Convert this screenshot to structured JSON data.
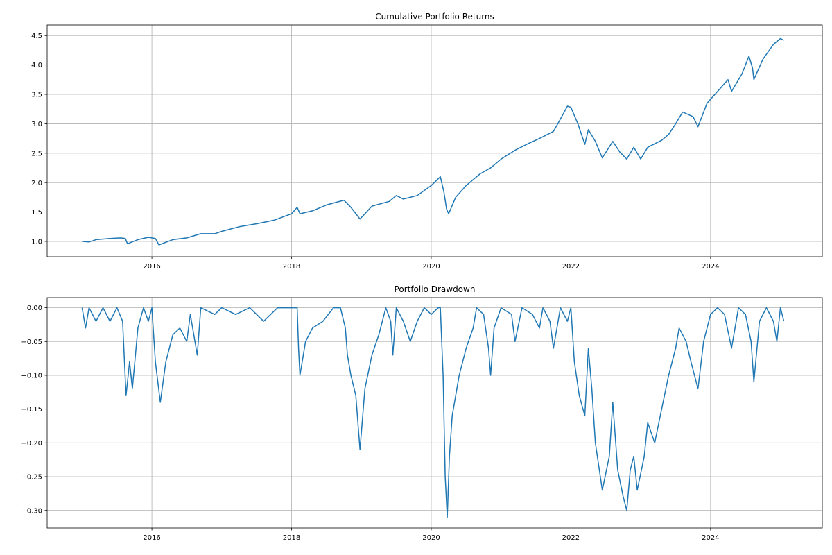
{
  "chart_data": [
    {
      "type": "line",
      "title": "Cumulative Portfolio Returns",
      "xlabel": "",
      "ylabel": "",
      "xlim": [
        2014.5,
        2025.6
      ],
      "ylim": [
        0.74,
        4.68
      ],
      "grid": true,
      "color": "#1f77b4",
      "xticks": [
        2016,
        2018,
        2020,
        2022,
        2024
      ],
      "xtick_labels": [
        "2016",
        "2018",
        "2020",
        "2022",
        "2024"
      ],
      "yticks": [
        1.0,
        1.5,
        2.0,
        2.5,
        3.0,
        3.5,
        4.0,
        4.5
      ],
      "ytick_labels": [
        "1.0",
        "1.5",
        "2.0",
        "2.5",
        "3.0",
        "3.5",
        "4.0",
        "4.5"
      ],
      "x": [
        2015.0,
        2015.1,
        2015.2,
        2015.4,
        2015.55,
        2015.62,
        2015.65,
        2015.8,
        2015.95,
        2016.05,
        2016.1,
        2016.3,
        2016.5,
        2016.7,
        2016.9,
        2017.0,
        2017.25,
        2017.5,
        2017.75,
        2018.0,
        2018.08,
        2018.12,
        2018.3,
        2018.5,
        2018.75,
        2018.85,
        2018.98,
        2019.15,
        2019.4,
        2019.5,
        2019.6,
        2019.8,
        2020.0,
        2020.13,
        2020.18,
        2020.22,
        2020.25,
        2020.35,
        2020.5,
        2020.7,
        2020.85,
        2021.0,
        2021.2,
        2021.4,
        2021.55,
        2021.75,
        2021.85,
        2021.95,
        2022.0,
        2022.1,
        2022.2,
        2022.25,
        2022.35,
        2022.45,
        2022.6,
        2022.7,
        2022.8,
        2022.9,
        2023.0,
        2023.1,
        2023.3,
        2023.4,
        2023.5,
        2023.6,
        2023.75,
        2023.82,
        2023.95,
        2024.1,
        2024.25,
        2024.3,
        2024.45,
        2024.55,
        2024.6,
        2024.62,
        2024.75,
        2024.9,
        2025.0,
        2025.05
      ],
      "y": [
        1.0,
        0.99,
        1.03,
        1.05,
        1.06,
        1.05,
        0.96,
        1.03,
        1.07,
        1.05,
        0.94,
        1.03,
        1.06,
        1.13,
        1.13,
        1.17,
        1.25,
        1.3,
        1.36,
        1.47,
        1.58,
        1.47,
        1.52,
        1.62,
        1.7,
        1.58,
        1.38,
        1.6,
        1.68,
        1.78,
        1.72,
        1.78,
        1.95,
        2.1,
        1.85,
        1.55,
        1.47,
        1.75,
        1.95,
        2.15,
        2.25,
        2.4,
        2.55,
        2.67,
        2.75,
        2.87,
        3.08,
        3.3,
        3.28,
        3.0,
        2.65,
        2.9,
        2.7,
        2.42,
        2.7,
        2.52,
        2.4,
        2.6,
        2.4,
        2.6,
        2.72,
        2.82,
        3.0,
        3.2,
        3.12,
        2.95,
        3.35,
        3.55,
        3.75,
        3.55,
        3.85,
        4.15,
        3.95,
        3.75,
        4.1,
        4.35,
        4.45,
        4.42
      ]
    },
    {
      "type": "line",
      "title": "Portfolio Drawdown",
      "xlabel": "",
      "ylabel": "",
      "xlim": [
        2014.5,
        2025.6
      ],
      "ylim": [
        -0.326,
        0.015
      ],
      "grid": true,
      "color": "#1f77b4",
      "xticks": [
        2016,
        2018,
        2020,
        2022,
        2024
      ],
      "xtick_labels": [
        "2016",
        "2018",
        "2020",
        "2022",
        "2024"
      ],
      "yticks": [
        0.0,
        -0.05,
        -0.1,
        -0.15,
        -0.2,
        -0.25,
        -0.3
      ],
      "ytick_labels": [
        "0.00",
        "−0.05",
        "−0.10",
        "−0.15",
        "−0.20",
        "−0.25",
        "−0.30"
      ],
      "x": [
        2015.0,
        2015.05,
        2015.1,
        2015.2,
        2015.3,
        2015.4,
        2015.5,
        2015.58,
        2015.63,
        2015.68,
        2015.72,
        2015.8,
        2015.88,
        2015.95,
        2016.0,
        2016.05,
        2016.12,
        2016.2,
        2016.3,
        2016.4,
        2016.5,
        2016.55,
        2016.65,
        2016.7,
        2016.9,
        2017.0,
        2017.2,
        2017.4,
        2017.6,
        2017.8,
        2018.0,
        2018.08,
        2018.1,
        2018.12,
        2018.2,
        2018.3,
        2018.45,
        2018.6,
        2018.7,
        2018.77,
        2018.8,
        2018.85,
        2018.92,
        2018.98,
        2019.05,
        2019.15,
        2019.25,
        2019.35,
        2019.42,
        2019.45,
        2019.5,
        2019.6,
        2019.7,
        2019.8,
        2019.9,
        2020.0,
        2020.1,
        2020.13,
        2020.17,
        2020.2,
        2020.23,
        2020.26,
        2020.3,
        2020.4,
        2020.5,
        2020.6,
        2020.65,
        2020.75,
        2020.82,
        2020.85,
        2020.9,
        2021.0,
        2021.15,
        2021.2,
        2021.3,
        2021.45,
        2021.55,
        2021.6,
        2021.7,
        2021.75,
        2021.85,
        2021.95,
        2022.0,
        2022.05,
        2022.12,
        2022.2,
        2022.25,
        2022.3,
        2022.35,
        2022.45,
        2022.55,
        2022.6,
        2022.67,
        2022.75,
        2022.8,
        2022.85,
        2022.9,
        2022.95,
        2023.05,
        2023.1,
        2023.2,
        2023.3,
        2023.4,
        2023.5,
        2023.55,
        2023.65,
        2023.72,
        2023.82,
        2023.9,
        2024.0,
        2024.1,
        2024.2,
        2024.3,
        2024.4,
        2024.5,
        2024.58,
        2024.62,
        2024.7,
        2024.8,
        2024.9,
        2024.95,
        2025.0,
        2025.05
      ],
      "y": [
        0,
        -0.03,
        0,
        -0.02,
        0,
        -0.02,
        0,
        -0.02,
        -0.13,
        -0.08,
        -0.12,
        -0.03,
        0,
        -0.02,
        0,
        -0.08,
        -0.14,
        -0.08,
        -0.04,
        -0.03,
        -0.05,
        -0.01,
        -0.07,
        0,
        -0.01,
        0,
        -0.01,
        0,
        -0.02,
        0,
        0,
        0,
        -0.06,
        -0.1,
        -0.05,
        -0.03,
        -0.02,
        0,
        0,
        -0.03,
        -0.07,
        -0.1,
        -0.13,
        -0.21,
        -0.12,
        -0.07,
        -0.04,
        0,
        -0.02,
        -0.07,
        0,
        -0.02,
        -0.05,
        -0.02,
        0,
        -0.01,
        0,
        0,
        -0.1,
        -0.25,
        -0.31,
        -0.22,
        -0.16,
        -0.1,
        -0.06,
        -0.03,
        0,
        -0.01,
        -0.06,
        -0.1,
        -0.03,
        0,
        -0.01,
        -0.05,
        0,
        -0.01,
        -0.03,
        0,
        -0.02,
        -0.06,
        0,
        -0.02,
        0,
        -0.08,
        -0.13,
        -0.16,
        -0.06,
        -0.12,
        -0.2,
        -0.27,
        -0.22,
        -0.14,
        -0.24,
        -0.28,
        -0.3,
        -0.24,
        -0.22,
        -0.27,
        -0.22,
        -0.17,
        -0.2,
        -0.15,
        -0.1,
        -0.06,
        -0.03,
        -0.05,
        -0.08,
        -0.12,
        -0.05,
        -0.01,
        0,
        -0.01,
        -0.06,
        0,
        -0.01,
        -0.05,
        -0.11,
        -0.02,
        0,
        -0.02,
        -0.05,
        0,
        -0.02
      ]
    }
  ]
}
